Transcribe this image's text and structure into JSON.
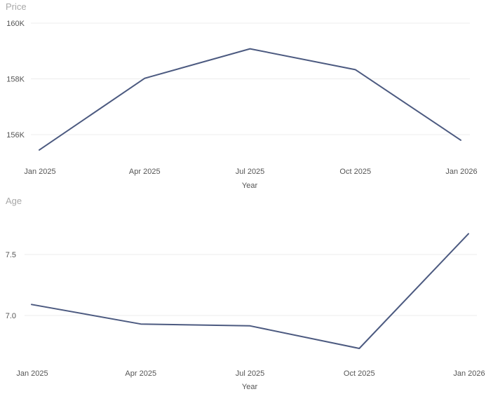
{
  "chart_data": [
    {
      "type": "line",
      "ylabel": "Price",
      "xlabel": "Year",
      "x": [
        "Jan 2025",
        "Apr 2025",
        "Jul 2025",
        "Oct 2025",
        "Jan 2026"
      ],
      "series": [
        {
          "values": [
            155450,
            158020,
            159080,
            158330,
            155800
          ]
        }
      ],
      "yticks": [
        {
          "value": 156000,
          "label": "156K"
        },
        {
          "value": 158000,
          "label": "158K"
        },
        {
          "value": 160000,
          "label": "160K"
        }
      ],
      "ylim": [
        155000,
        160000
      ],
      "grid": true,
      "color": "#4c5a80"
    },
    {
      "type": "line",
      "ylabel": "Age",
      "xlabel": "Year",
      "x": [
        "Jan 2025",
        "Apr 2025",
        "Jul 2025",
        "Oct 2025",
        "Jan 2026"
      ],
      "series": [
        {
          "values": [
            7.09,
            6.93,
            6.915,
            6.73,
            7.67
          ]
        }
      ],
      "yticks": [
        {
          "value": 7.0,
          "label": "7.0"
        },
        {
          "value": 7.5,
          "label": "7.5"
        }
      ],
      "ylim": [
        6.65,
        7.8
      ],
      "grid": true,
      "color": "#4c5a80"
    }
  ]
}
